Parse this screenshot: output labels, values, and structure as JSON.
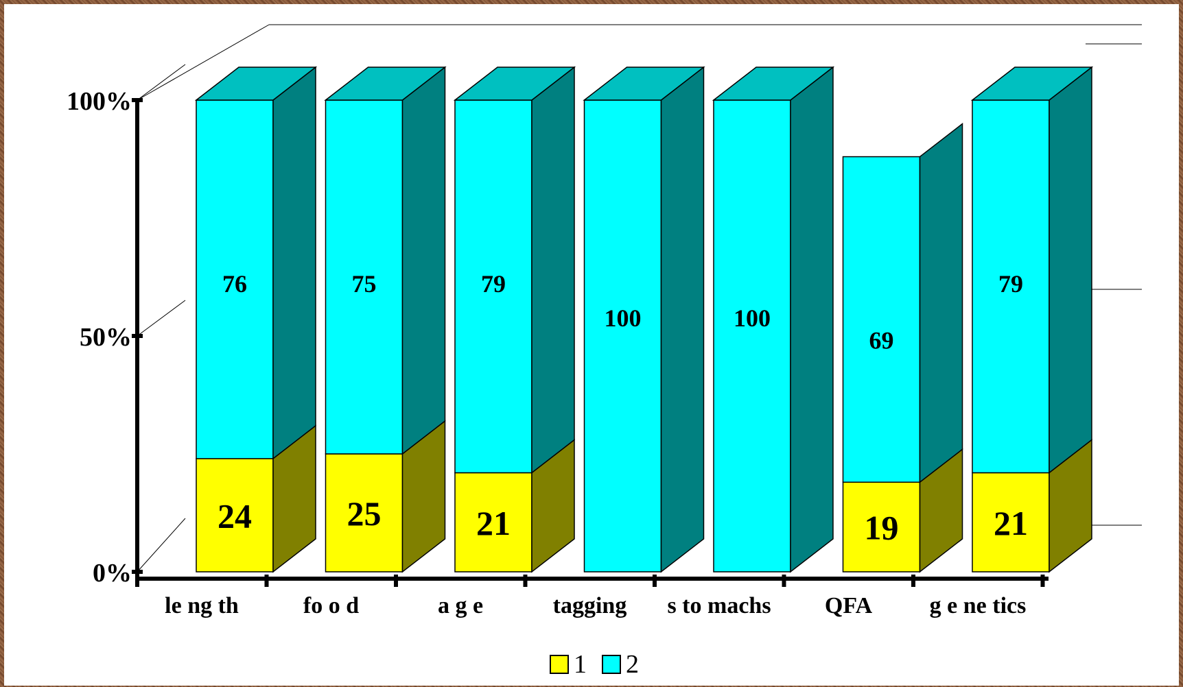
{
  "chart_data": {
    "type": "bar",
    "stacked": true,
    "percent_stacked": true,
    "three_d": true,
    "title": "",
    "xlabel": "",
    "ylabel": "",
    "categories": [
      "le ng th",
      "fo o d",
      "a g e",
      "tagging",
      "s to machs",
      "QFA",
      "g e ne tics"
    ],
    "series": [
      {
        "name": "1",
        "values": [
          24,
          25,
          21,
          0,
          0,
          19,
          21
        ],
        "color": "#ffff00",
        "side_color": "#808000",
        "top_color": "#c8c800"
      },
      {
        "name": "2",
        "values": [
          76,
          75,
          79,
          100,
          100,
          69,
          79
        ],
        "color": "#00ffff",
        "side_color": "#008080",
        "top_color": "#00c0c0"
      }
    ],
    "yticks": [
      "0%",
      "50%",
      "100%"
    ],
    "ylim": [
      0,
      100
    ],
    "grid": true,
    "legend_position": "bottom"
  }
}
